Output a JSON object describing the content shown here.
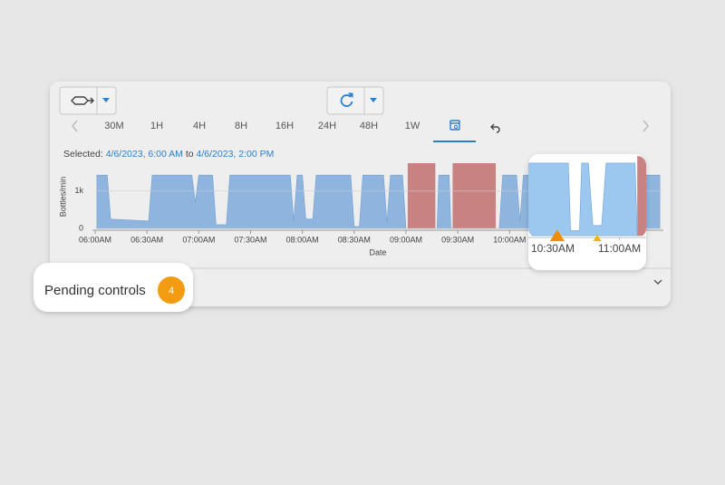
{
  "toolbar": {
    "ranges": [
      "30M",
      "1H",
      "4H",
      "8H",
      "16H",
      "24H",
      "48H",
      "1W"
    ]
  },
  "selection": {
    "prefix": "Selected:",
    "start": "4/6/2023, 6:00 AM",
    "joiner": "to",
    "end": "4/6/2023, 2:00 PM"
  },
  "chart": {
    "type": "area",
    "y_label": "Bottles/min",
    "x_label": "Date",
    "color": "#8fb5de",
    "stop_color": "#c98282",
    "xlim": [
      "06:00",
      "11:28"
    ],
    "xticks": [
      "06:00AM",
      "06:30AM",
      "07:00AM",
      "07:30AM",
      "08:00AM",
      "08:30AM",
      "09:00AM",
      "09:30AM",
      "10:00AM"
    ],
    "ylim": [
      0,
      1750
    ],
    "yticks": [
      0,
      {
        "value": 1000,
        "label": "1k"
      }
    ],
    "x": [
      "06:01",
      "06:07",
      "06:09",
      "06:31",
      "06:33",
      "06:56",
      "06:58",
      "07:00",
      "07:08",
      "07:10",
      "07:16",
      "07:18",
      "07:53",
      "07:55",
      "07:57",
      "08:00",
      "08:02",
      "08:06",
      "08:08",
      "08:28",
      "08:30",
      "08:33",
      "08:35",
      "08:47",
      "08:49",
      "08:51",
      "08:58",
      "09:00",
      "09:18",
      "09:19",
      "09:25",
      "09:26",
      "09:54",
      "09:56",
      "10:04",
      "10:06",
      "10:08",
      "10:37",
      "10:38",
      "10:42",
      "10:43",
      "10:46",
      "10:48",
      "10:52",
      "10:54",
      "11:07",
      "11:08",
      "11:15",
      "11:16",
      "11:27"
    ],
    "values": [
      1430,
      1430,
      250,
      200,
      1430,
      1430,
      700,
      1430,
      1430,
      100,
      100,
      1430,
      1430,
      200,
      1430,
      1430,
      250,
      250,
      1430,
      1430,
      50,
      50,
      1430,
      1430,
      150,
      1430,
      1430,
      0,
      0,
      1430,
      1430,
      0,
      0,
      1430,
      1430,
      200,
      1430,
      1430,
      100,
      100,
      1430,
      1430,
      200,
      200,
      1430,
      1430,
      0,
      0,
      1430,
      1430
    ],
    "stops": [
      {
        "start": "09:01",
        "end": "09:17"
      },
      {
        "start": "09:27",
        "end": "09:52"
      },
      {
        "start": "11:08",
        "end": "11:15"
      }
    ]
  },
  "zoom": {
    "xlim": [
      "10:19",
      "11:12"
    ],
    "xticks": [
      "10:30AM",
      "11:00AM"
    ],
    "events": [
      "10:32",
      "10:50"
    ]
  },
  "pending": {
    "label": "Pending controls",
    "count": 4
  }
}
